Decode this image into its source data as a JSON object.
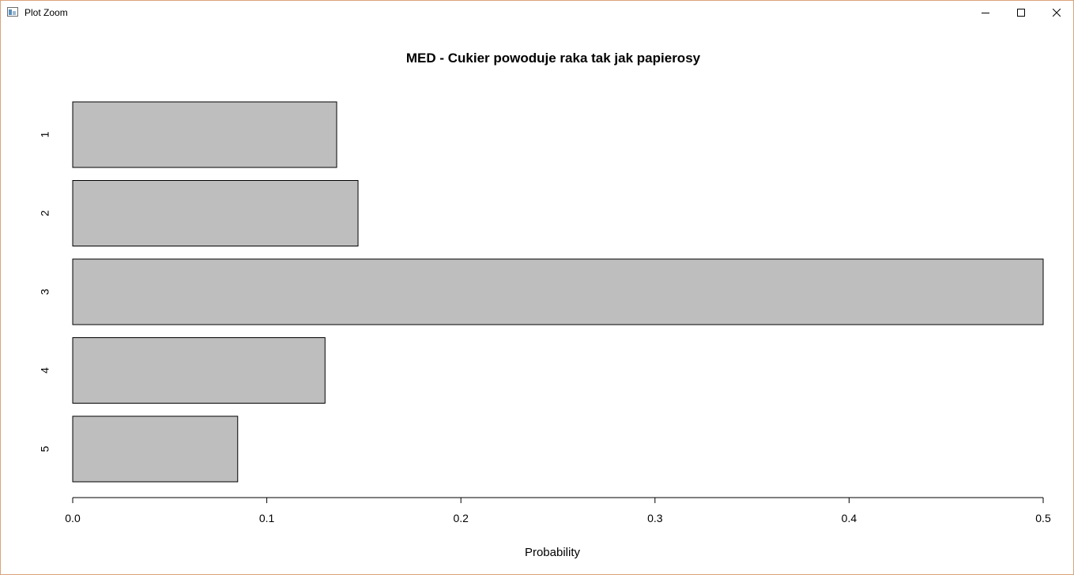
{
  "window": {
    "title": "Plot Zoom",
    "icon": "r-plot-window-icon",
    "controls": [
      "minimize-icon",
      "maximize-icon",
      "close-icon"
    ]
  },
  "chart_data": {
    "type": "bar",
    "orientation": "horizontal",
    "title": "MED - Cukier powoduje raka tak jak papierosy",
    "xlabel": "Probability",
    "ylabel": "",
    "categories": [
      "1",
      "2",
      "3",
      "4",
      "5"
    ],
    "values": [
      0.136,
      0.147,
      0.5,
      0.13,
      0.085
    ],
    "xlim": [
      0,
      0.5
    ],
    "xticks": [
      "0.0",
      "0.1",
      "0.2",
      "0.3",
      "0.4",
      "0.5"
    ],
    "xtick_values": [
      0,
      0.1,
      0.2,
      0.3,
      0.4,
      0.5
    ],
    "bar_color": "#bebebe",
    "bar_edge_color": "#000000",
    "grid": false,
    "legend": "none"
  }
}
